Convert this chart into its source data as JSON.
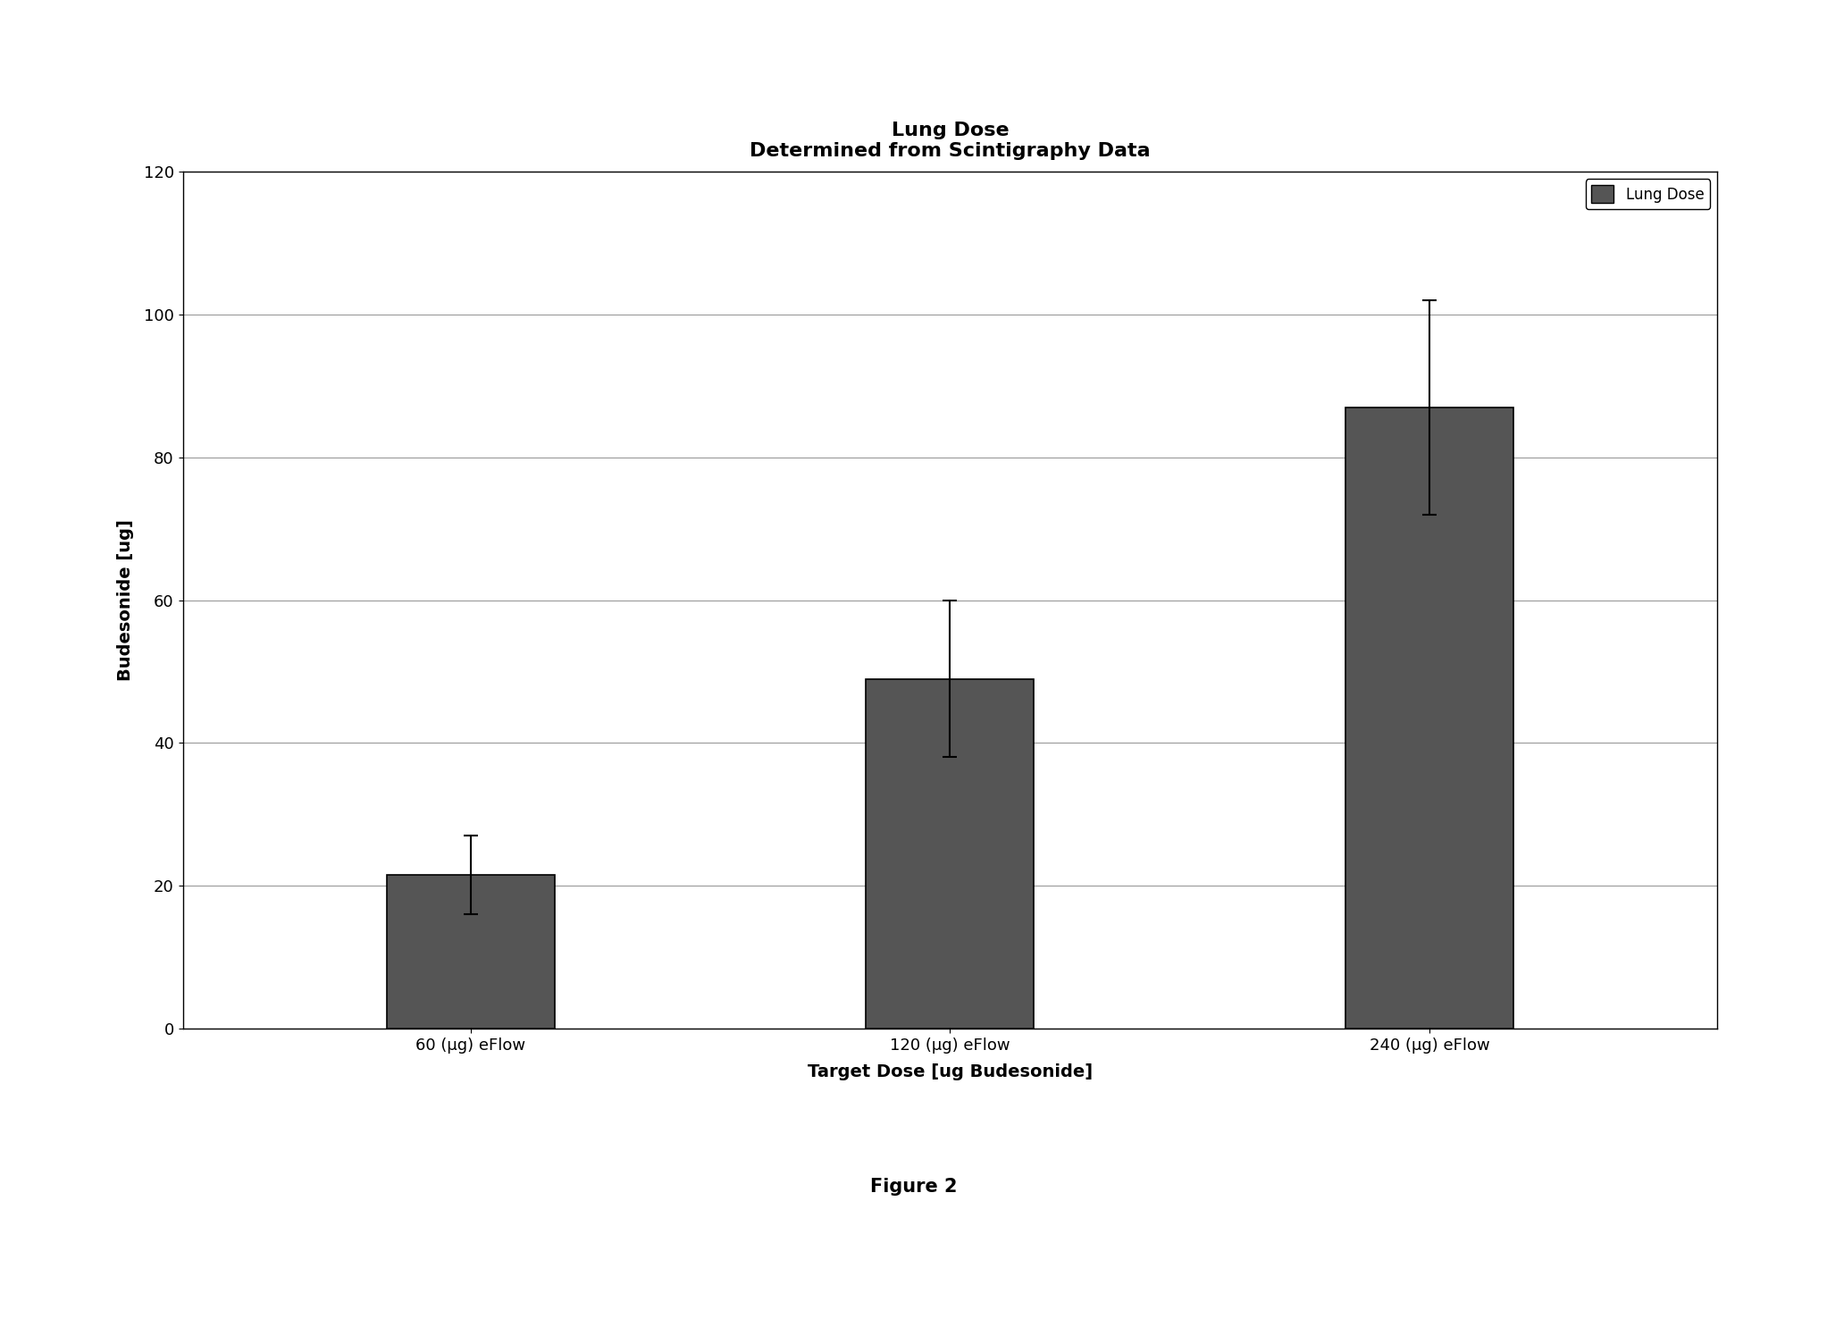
{
  "title_line1": "Lung Dose",
  "title_line2": "Determined from Scintigraphy Data",
  "xlabel": "Target Dose [ug Budesonide]",
  "ylabel": "Budesonide [ug]",
  "categories": [
    "60 (μg) eFlow",
    "120 (μg) eFlow",
    "240 (μg) eFlow"
  ],
  "values": [
    21.5,
    49.0,
    87.0
  ],
  "errors": [
    5.5,
    11.0,
    15.0
  ],
  "ylim": [
    0,
    120
  ],
  "yticks": [
    0,
    20,
    40,
    60,
    80,
    100,
    120
  ],
  "bar_color": "#555555",
  "bar_edge_color": "#000000",
  "background_color": "#ffffff",
  "legend_label": "Lung Dose",
  "figure_caption": "Figure 2",
  "title_fontsize": 16,
  "axis_label_fontsize": 14,
  "tick_fontsize": 13,
  "legend_fontsize": 12,
  "caption_fontsize": 15
}
